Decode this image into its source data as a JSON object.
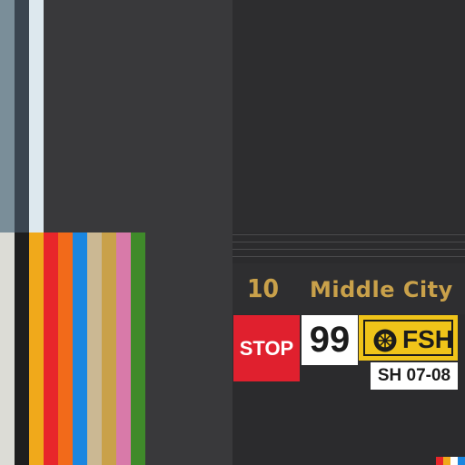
{
  "palette_top": [
    "#7a8e99",
    "#3a4550",
    "#dde8ee"
  ],
  "palette_stripes": [
    "#dcdcd6",
    "#1e1e1e",
    "#f0a91b",
    "#e8262a",
    "#f26a1a",
    "#1a86e0",
    "#cbb893",
    "#c9a14a",
    "#d87aa9",
    "#3f8a2a"
  ],
  "palette_mini": [
    "#e8262a",
    "#f0a91b",
    "#ffffff",
    "#1a86e0"
  ],
  "sign": {
    "route_number": "10",
    "destination": "Middle City",
    "stop_label": "STOP",
    "route_badge": "99",
    "fsh_label": "FSH",
    "fsh_icon": "wheel-icon",
    "time_label": "SH 07-08"
  },
  "colors": {
    "gold_text": "#c9a14a",
    "stop_red": "#e0202e",
    "fsh_yellow": "#f0c419"
  }
}
